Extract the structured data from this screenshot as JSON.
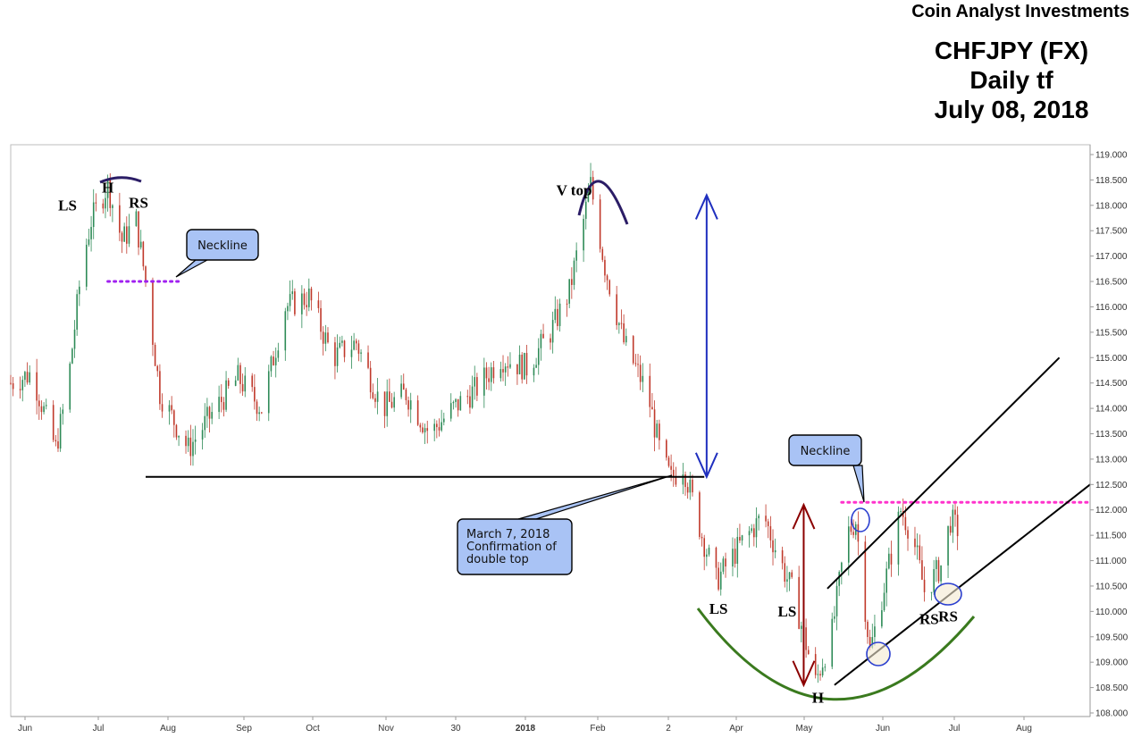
{
  "header": {
    "brand": "Coin Analyst Investments",
    "title_lines": [
      "CHFJPY (FX)",
      "Daily tf",
      "July 08, 2018"
    ]
  },
  "colors": {
    "up": "#2e8b57",
    "down": "#c0392b",
    "neckline_left": "#a020f0",
    "neckline_right": "#ff33cc",
    "measure_top": "#1f2fbf",
    "measure_bottom": "#8b0000",
    "cup": "#3a7a1e",
    "arc_top": "#2b1d66",
    "callout_fill": "#a9c3f5"
  },
  "chart_data": {
    "type": "candlestick",
    "symbol": "CHFJPY (FX)",
    "timeframe": "Daily",
    "x_labels": [
      "Jun",
      "Jul",
      "Aug",
      "Sep",
      "Oct",
      "Nov",
      "30",
      "2018",
      "Feb",
      "2",
      "Apr",
      "May",
      "Jun",
      "Jul",
      "Aug"
    ],
    "y_ticks": [
      "119.000",
      "118.500",
      "118.000",
      "117.500",
      "117.000",
      "116.500",
      "116.000",
      "115.500",
      "115.000",
      "114.500",
      "114.000",
      "113.500",
      "113.000",
      "112.500",
      "112.000",
      "111.500",
      "111.000",
      "110.500",
      "110.000",
      "109.500",
      "109.000",
      "108.500",
      "108.000"
    ],
    "ylim": [
      108.0,
      119.0
    ],
    "x_range": [
      "2017-06-01",
      "2018-08-31"
    ],
    "price_path": [
      [
        "2017-06-01",
        114.5
      ],
      [
        "2017-06-10",
        114.7
      ],
      [
        "2017-06-20",
        113.2
      ],
      [
        "2017-06-25",
        114.4
      ],
      [
        "2017-07-01",
        116.8
      ],
      [
        "2017-07-05",
        117.7
      ],
      [
        "2017-07-12",
        118.4
      ],
      [
        "2017-07-18",
        117.3
      ],
      [
        "2017-07-24",
        117.7
      ],
      [
        "2017-07-28",
        116.5
      ],
      [
        "2017-08-03",
        114.3
      ],
      [
        "2017-08-15",
        113.2
      ],
      [
        "2017-08-25",
        113.9
      ],
      [
        "2017-09-05",
        114.6
      ],
      [
        "2017-09-15",
        114.0
      ],
      [
        "2017-09-25",
        116.0
      ],
      [
        "2017-10-05",
        116.2
      ],
      [
        "2017-10-15",
        115.0
      ],
      [
        "2017-10-25",
        115.3
      ],
      [
        "2017-11-05",
        114.0
      ],
      [
        "2017-11-15",
        114.3
      ],
      [
        "2017-11-25",
        113.5
      ],
      [
        "2017-12-05",
        114.0
      ],
      [
        "2017-12-15",
        114.4
      ],
      [
        "2017-12-25",
        115.0
      ],
      [
        "2018-01-05",
        114.8
      ],
      [
        "2018-01-15",
        115.5
      ],
      [
        "2018-01-23",
        116.3
      ],
      [
        "2018-02-01",
        118.4
      ],
      [
        "2018-02-07",
        116.8
      ],
      [
        "2018-02-15",
        115.3
      ],
      [
        "2018-02-25",
        114.3
      ],
      [
        "2018-03-03",
        113.0
      ],
      [
        "2018-03-07",
        112.6
      ],
      [
        "2018-03-12",
        112.9
      ],
      [
        "2018-03-20",
        111.5
      ],
      [
        "2018-03-26",
        110.6
      ],
      [
        "2018-04-05",
        111.3
      ],
      [
        "2018-04-15",
        111.9
      ],
      [
        "2018-04-22",
        111.0
      ],
      [
        "2018-04-28",
        110.3
      ],
      [
        "2018-05-07",
        108.6
      ],
      [
        "2018-05-14",
        109.6
      ],
      [
        "2018-05-20",
        111.5
      ],
      [
        "2018-05-24",
        111.8
      ],
      [
        "2018-05-30",
        109.2
      ],
      [
        "2018-06-05",
        110.5
      ],
      [
        "2018-06-12",
        112.0
      ],
      [
        "2018-06-17",
        111.5
      ],
      [
        "2018-06-22",
        110.4
      ],
      [
        "2018-06-29",
        110.9
      ],
      [
        "2018-07-03",
        111.8
      ],
      [
        "2018-07-08",
        111.5
      ]
    ],
    "horizontal_levels": [
      {
        "value": 112.65,
        "from": "2017-07-28",
        "to": "2018-03-21"
      }
    ],
    "necklines": [
      {
        "label": "Neckline",
        "value": 116.5,
        "from": "2017-07-12",
        "to": "2017-08-12",
        "style": "dotted"
      },
      {
        "label": "Neckline",
        "value": 112.15,
        "from": "2018-05-18",
        "to": "2018-08-31",
        "style": "dotted"
      }
    ],
    "trend_channel": [
      {
        "from": [
          "2018-05-15",
          108.55
        ],
        "to": [
          "2018-08-31",
          112.5
        ]
      },
      {
        "from": [
          "2018-05-12",
          110.45
        ],
        "to": [
          "2018-08-18",
          115.0
        ]
      }
    ],
    "annotations": [
      {
        "text": "LS",
        "date": "2017-06-25",
        "price": 117.9
      },
      {
        "text": "H",
        "date": "2017-07-12",
        "price": 118.25
      },
      {
        "text": "RS",
        "date": "2017-07-25",
        "price": 117.95
      },
      {
        "text": "V top",
        "date": "2018-01-25",
        "price": 118.2
      },
      {
        "text": "LS",
        "date": "2018-03-27",
        "price": 109.95
      },
      {
        "text": "LS",
        "date": "2018-04-25",
        "price": 109.9
      },
      {
        "text": "H",
        "date": "2018-05-08",
        "price": 108.2
      },
      {
        "text": "RS",
        "date": "2018-06-24",
        "price": 109.75
      },
      {
        "text": "RS",
        "date": "2018-07-02",
        "price": 109.8
      }
    ],
    "callouts": [
      {
        "lines": [
          "Neckline"
        ]
      },
      {
        "lines": [
          "Neckline"
        ]
      },
      {
        "lines": [
          "March 7, 2018",
          "Confirmation of",
          "double top"
        ]
      }
    ],
    "measured_moves": [
      {
        "date": "2018-03-22",
        "from": 112.65,
        "to": 118.2
      },
      {
        "date": "2018-05-02",
        "from": 108.55,
        "to": 112.1
      }
    ]
  }
}
